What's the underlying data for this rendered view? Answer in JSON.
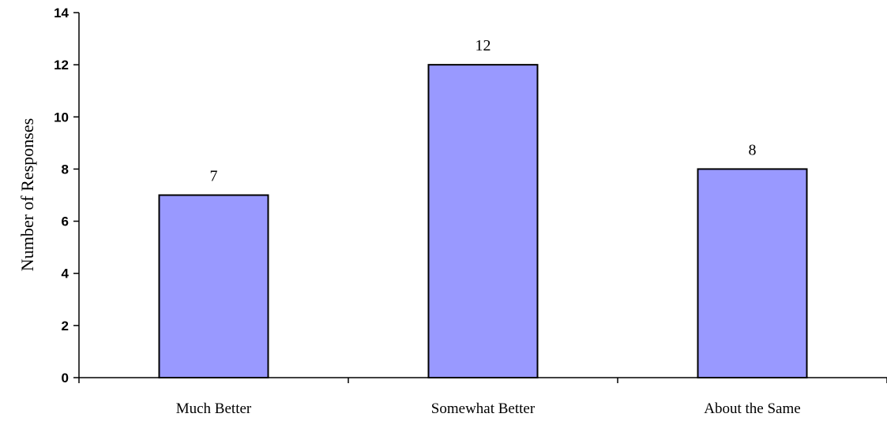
{
  "chart_data": {
    "type": "bar",
    "title": "",
    "xlabel": "",
    "ylabel": "Number of Responses",
    "categories": [
      "Much Better",
      "Somewhat Better",
      "About the Same"
    ],
    "values": [
      7,
      12,
      8
    ],
    "data_labels": [
      "7",
      "12",
      "8"
    ],
    "ylim": [
      0,
      14
    ],
    "yticks": [
      0,
      2,
      4,
      6,
      8,
      10,
      12,
      14
    ],
    "ytick_labels": [
      "0",
      "2",
      "4",
      "6",
      "8",
      "10",
      "12",
      "14"
    ],
    "grid": false,
    "legend": "none",
    "bar_color": "#9999ff",
    "bar_edge_color": "#000000"
  }
}
